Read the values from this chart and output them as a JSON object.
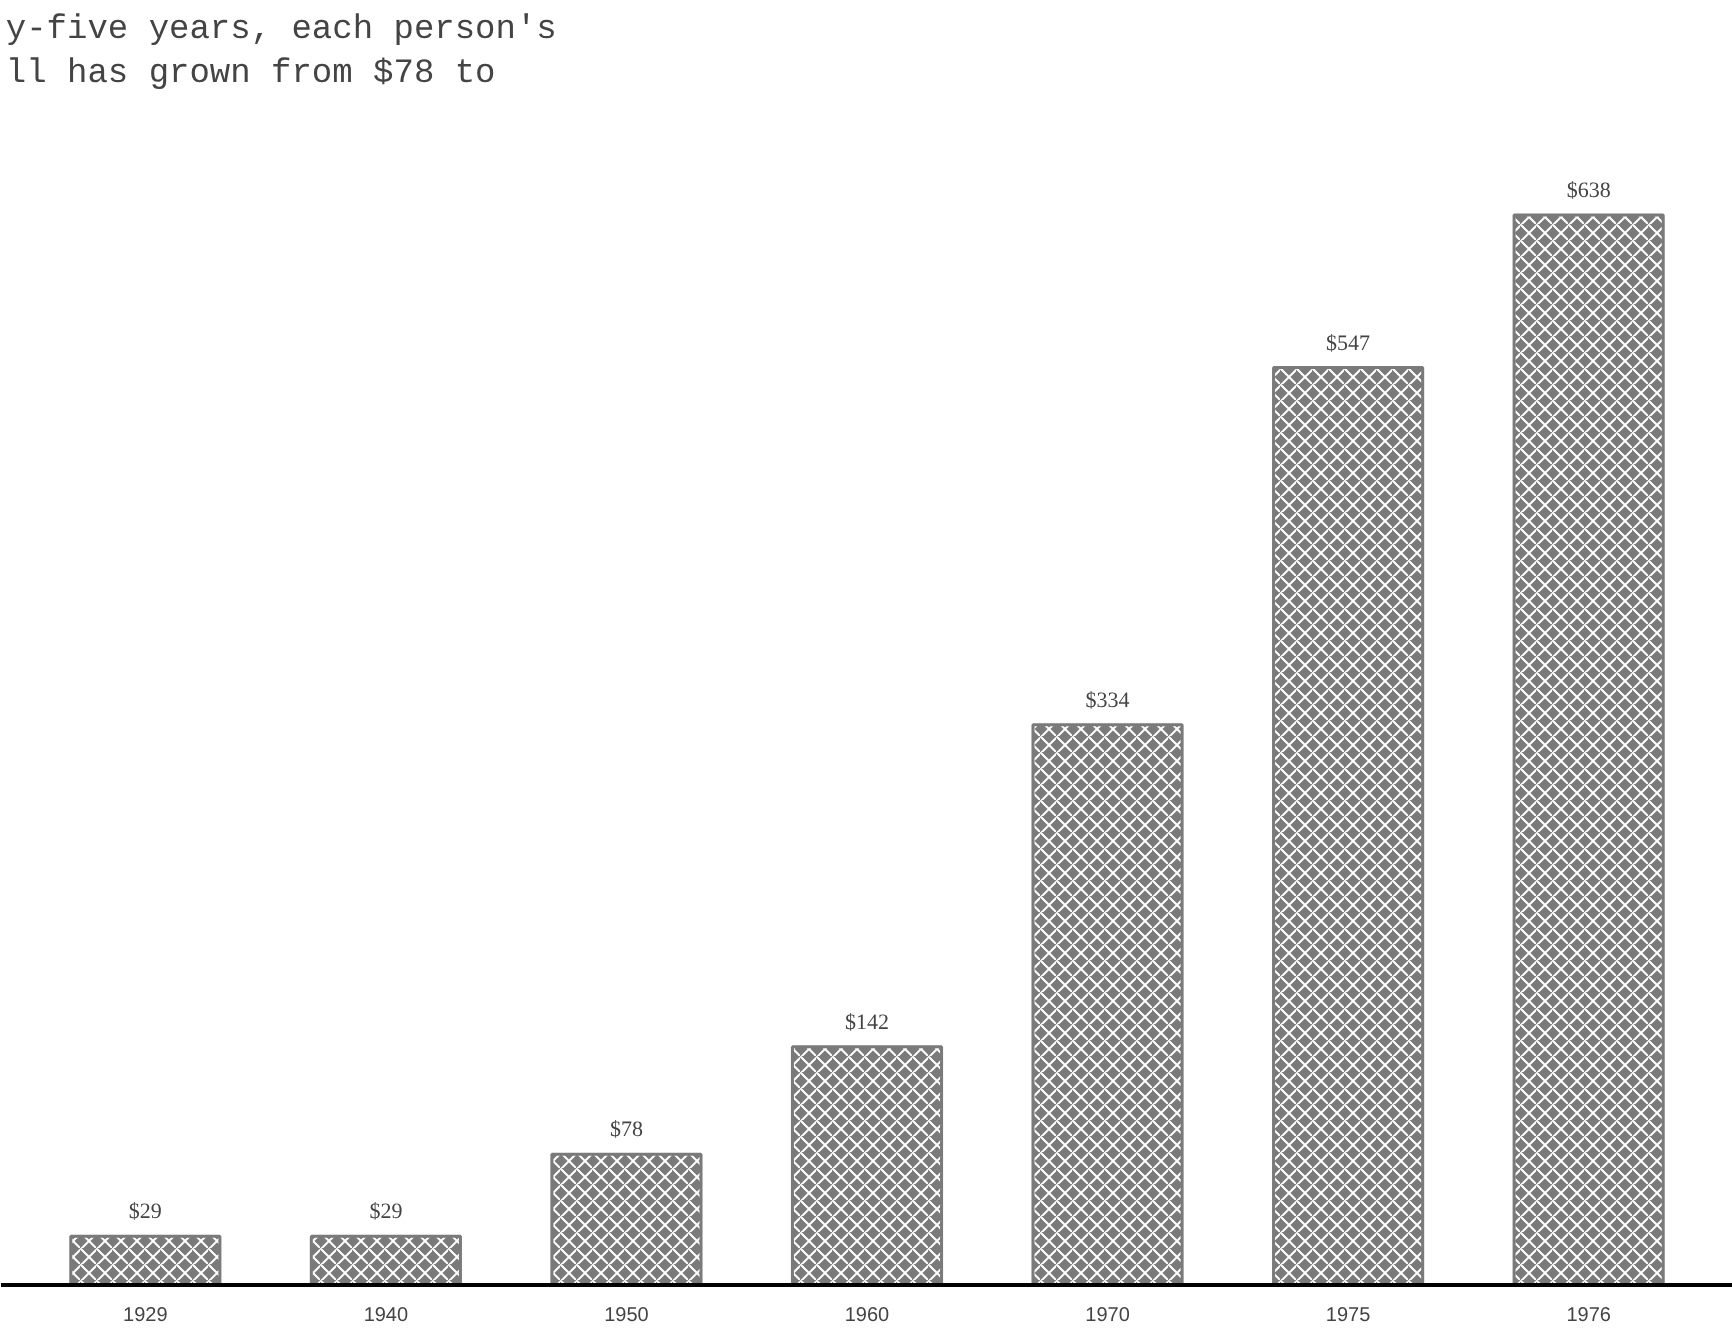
{
  "chart_data": {
    "type": "bar",
    "categories": [
      "1929",
      "1940",
      "1950",
      "1960",
      "1970",
      "1975",
      "1976"
    ],
    "values": [
      29,
      29,
      78,
      142,
      334,
      547,
      638
    ],
    "value_labels": [
      "$29",
      "$29",
      "$78",
      "$142",
      "$334",
      "$547",
      "$638"
    ],
    "color": "#7a7a7a",
    "annotations": [
      "y-five years, each person's",
      "ll has grown from $78 to"
    ],
    "grid": false
  }
}
